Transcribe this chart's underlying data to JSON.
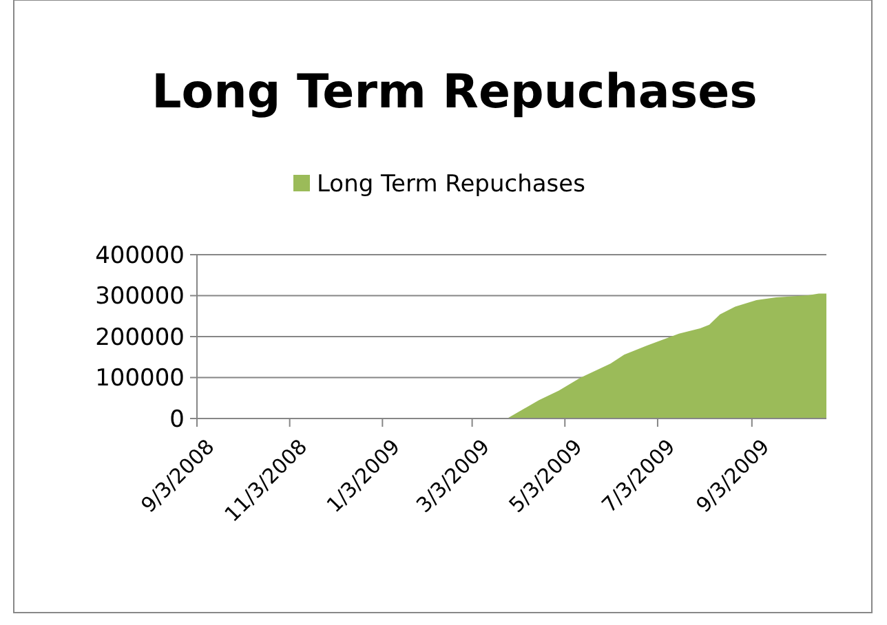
{
  "chart_data": {
    "type": "area",
    "title": "Long Term Repuchases",
    "x": [
      "2009-03-26",
      "2009-04-16",
      "2009-04-29",
      "2009-05-13",
      "2009-06-02",
      "2009-06-11",
      "2009-06-26",
      "2009-07-17",
      "2009-07-31",
      "2009-08-06",
      "2009-08-13",
      "2009-08-23",
      "2009-09-06",
      "2009-09-19",
      "2009-10-10",
      "2009-10-17",
      "2009-10-22"
    ],
    "series": [
      {
        "name": "Long Term Repuchases",
        "color": "#9bbb59",
        "values": [
          0,
          45000,
          68000,
          99000,
          134000,
          156000,
          178000,
          207000,
          220000,
          229000,
          254000,
          273000,
          289000,
          296000,
          301000,
          305000,
          305000
        ]
      }
    ],
    "xlim": [
      "2008-09-03",
      "2009-10-22"
    ],
    "xticks": [
      {
        "value": "2008-09-03",
        "label": "9/3/2008"
      },
      {
        "value": "2008-11-03",
        "label": "11/3/2008"
      },
      {
        "value": "2009-01-03",
        "label": "1/3/2009"
      },
      {
        "value": "2009-03-03",
        "label": "3/3/2009"
      },
      {
        "value": "2009-05-03",
        "label": "5/3/2009"
      },
      {
        "value": "2009-07-03",
        "label": "7/3/2009"
      },
      {
        "value": "2009-09-03",
        "label": "9/3/2009"
      }
    ],
    "ylim": [
      0,
      400000
    ],
    "yticks": [
      0,
      100000,
      200000,
      300000,
      400000
    ],
    "grid": "y",
    "legend": "top"
  }
}
